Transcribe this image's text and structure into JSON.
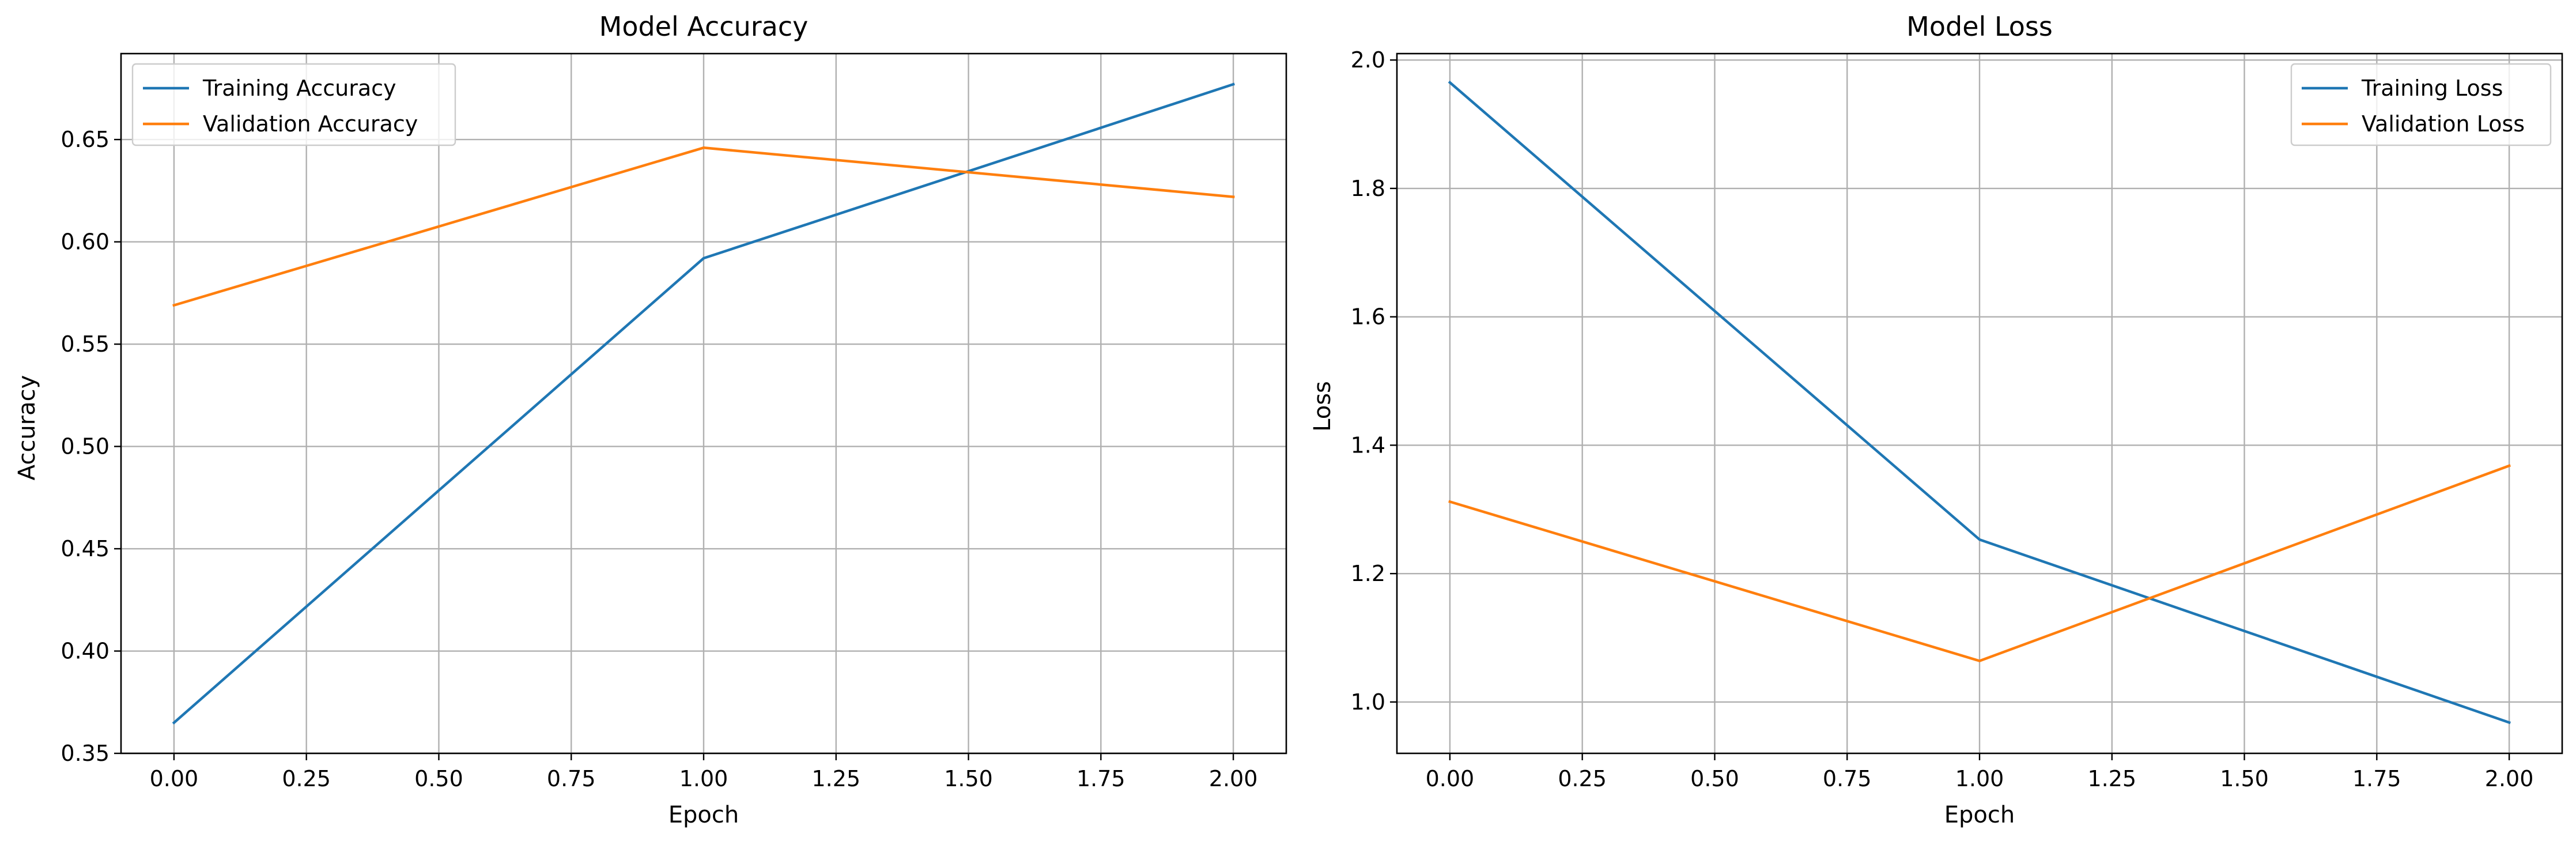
{
  "chart_data": [
    {
      "type": "line",
      "title": "Model Accuracy",
      "xlabel": "Epoch",
      "ylabel": "Accuracy",
      "xlim": [
        -0.1,
        2.1
      ],
      "ylim": [
        0.35,
        0.692
      ],
      "xticks": [
        0.0,
        0.25,
        0.5,
        0.75,
        1.0,
        1.25,
        1.5,
        1.75,
        2.0
      ],
      "xtick_labels": [
        "0.00",
        "0.25",
        "0.50",
        "0.75",
        "1.00",
        "1.25",
        "1.50",
        "1.75",
        "2.00"
      ],
      "yticks": [
        0.35,
        0.4,
        0.45,
        0.5,
        0.55,
        0.6,
        0.65
      ],
      "ytick_labels": [
        "0.35",
        "0.40",
        "0.45",
        "0.50",
        "0.55",
        "0.60",
        "0.65"
      ],
      "grid": true,
      "legend_position": "upper-left",
      "x": [
        0,
        1,
        2
      ],
      "series": [
        {
          "name": "Training Accuracy",
          "color": "#1f77b4",
          "values": [
            0.365,
            0.592,
            0.677
          ]
        },
        {
          "name": "Validation Accuracy",
          "color": "#ff7f0e",
          "values": [
            0.569,
            0.646,
            0.622
          ]
        }
      ]
    },
    {
      "type": "line",
      "title": "Model Loss",
      "xlabel": "Epoch",
      "ylabel": "Loss",
      "xlim": [
        -0.1,
        2.1
      ],
      "ylim": [
        0.92,
        2.01
      ],
      "xticks": [
        0.0,
        0.25,
        0.5,
        0.75,
        1.0,
        1.25,
        1.5,
        1.75,
        2.0
      ],
      "xtick_labels": [
        "0.00",
        "0.25",
        "0.50",
        "0.75",
        "1.00",
        "1.25",
        "1.50",
        "1.75",
        "2.00"
      ],
      "yticks": [
        1.0,
        1.2,
        1.4,
        1.6,
        1.8,
        2.0
      ],
      "ytick_labels": [
        "1.0",
        "1.2",
        "1.4",
        "1.6",
        "1.8",
        "2.0"
      ],
      "grid": true,
      "legend_position": "upper-right",
      "x": [
        0,
        1,
        2
      ],
      "series": [
        {
          "name": "Training Loss",
          "color": "#1f77b4",
          "values": [
            1.965,
            1.253,
            0.968
          ]
        },
        {
          "name": "Validation Loss",
          "color": "#ff7f0e",
          "values": [
            1.312,
            1.064,
            1.368
          ]
        }
      ]
    }
  ]
}
